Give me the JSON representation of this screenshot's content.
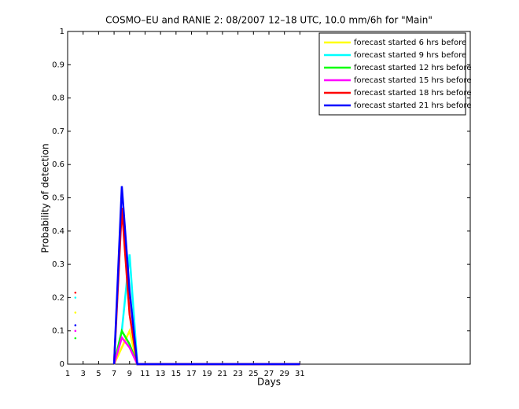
{
  "chart_data": {
    "type": "line",
    "title": "COSMO–EU and RANIE 2: 08/2007 12–18 UTC, 10.0 mm/6h for \"Main\"",
    "x_label": "Days",
    "y_label": "Probability of detection",
    "x": [
      1,
      2,
      3,
      4,
      5,
      6,
      7,
      8,
      9,
      10,
      11,
      12,
      13,
      14,
      15,
      16,
      17,
      18,
      19,
      20,
      21,
      22,
      23,
      24,
      25,
      26,
      27,
      28,
      29,
      30,
      31
    ],
    "xlim": [
      1,
      53
    ],
    "ylim": [
      0,
      1
    ],
    "xticks": [
      1,
      3,
      5,
      7,
      9,
      11,
      13,
      15,
      17,
      19,
      21,
      23,
      25,
      27,
      29,
      31
    ],
    "yticks": [
      0,
      0.1,
      0.2,
      0.3,
      0.4,
      0.5,
      0.6,
      0.7,
      0.8,
      0.9,
      1
    ],
    "legend": "upper right",
    "series": [
      {
        "name": "forecast started 6 hrs before",
        "color": "#ffff00",
        "values": [
          null,
          0.155,
          null,
          null,
          null,
          null,
          0,
          0.05,
          0.1,
          0,
          0,
          0,
          0,
          0,
          0,
          0,
          0,
          0,
          0,
          0,
          0,
          0,
          0,
          0,
          0,
          0,
          0,
          0,
          0,
          0,
          0
        ]
      },
      {
        "name": "forecast started 9 hrs before",
        "color": "#00ffff",
        "values": [
          null,
          0.2,
          null,
          null,
          null,
          null,
          0,
          0.1,
          0.33,
          0,
          0,
          0,
          0,
          0,
          0,
          0,
          0,
          0,
          0,
          0,
          0,
          0,
          0,
          0,
          0,
          0,
          0,
          0,
          0,
          0,
          0
        ]
      },
      {
        "name": "forecast started 12 hrs before",
        "color": "#00ff00",
        "values": [
          null,
          0.078,
          null,
          null,
          null,
          null,
          0,
          0.1,
          0.06,
          0,
          0,
          0,
          0,
          0,
          0,
          0,
          0,
          0,
          0,
          0,
          0,
          0,
          0,
          0,
          0,
          0,
          0,
          0,
          0,
          0,
          0
        ]
      },
      {
        "name": "forecast started 15 hrs before",
        "color": "#ff00ff",
        "values": [
          null,
          0.1,
          null,
          null,
          null,
          null,
          0,
          0.08,
          0.05,
          0,
          0,
          0,
          0,
          0,
          0,
          0,
          0,
          0,
          0,
          0,
          0,
          0,
          0,
          0,
          0,
          0,
          0,
          0,
          0,
          0,
          0
        ]
      },
      {
        "name": "forecast started 18 hrs before",
        "color": "#ff0000",
        "values": [
          null,
          0.215,
          null,
          null,
          null,
          null,
          0,
          0.47,
          0.15,
          0,
          0,
          0,
          0,
          0,
          0,
          0,
          0,
          0,
          0,
          0,
          0,
          0,
          0,
          0,
          0,
          0,
          0,
          0,
          0,
          0,
          0
        ]
      },
      {
        "name": "forecast started 21 hrs before",
        "color": "#0000ff",
        "values": [
          null,
          0.117,
          null,
          null,
          null,
          null,
          0,
          0.535,
          0.22,
          0,
          0,
          0,
          0,
          0,
          0,
          0,
          0,
          0,
          0,
          0,
          0,
          0,
          0,
          0,
          0,
          0,
          0,
          0,
          0,
          0,
          0
        ]
      }
    ]
  }
}
